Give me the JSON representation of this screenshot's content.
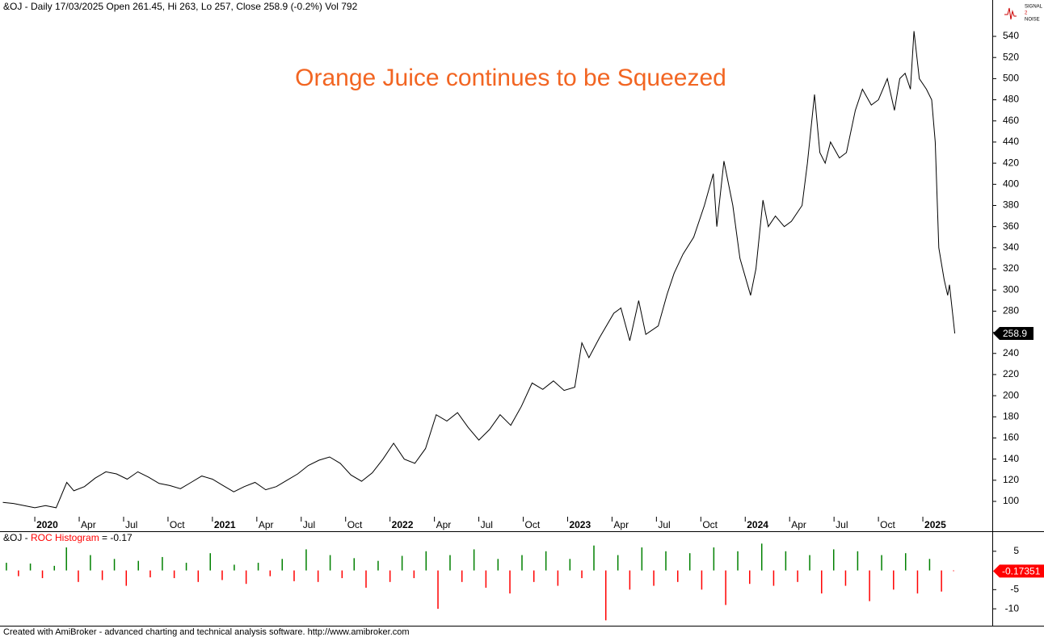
{
  "header": "&OJ - Daily 17/03/2025 Open 261.45, Hi 263, Lo 257, Close 258.9 (-0.2%) Vol 792",
  "footer": "Created with AmiBroker - advanced charting and technical analysis software. http://www.amibroker.com",
  "logo": [
    "SIGNAL",
    "2",
    "NOISE"
  ],
  "chart_data": [
    {
      "type": "line",
      "annotation": "Orange Juice continues to be Squeezed",
      "color": "#000000",
      "x": [
        2019.82,
        2019.88,
        2019.94,
        2020.0,
        2020.06,
        2020.12,
        2020.18,
        2020.22,
        2020.28,
        2020.34,
        2020.4,
        2020.46,
        2020.52,
        2020.58,
        2020.64,
        2020.7,
        2020.76,
        2020.82,
        2020.88,
        2020.94,
        2021.0,
        2021.06,
        2021.12,
        2021.18,
        2021.24,
        2021.3,
        2021.36,
        2021.42,
        2021.48,
        2021.54,
        2021.6,
        2021.66,
        2021.72,
        2021.78,
        2021.84,
        2021.9,
        2021.96,
        2022.02,
        2022.08,
        2022.14,
        2022.2,
        2022.26,
        2022.32,
        2022.38,
        2022.44,
        2022.5,
        2022.56,
        2022.62,
        2022.68,
        2022.74,
        2022.8,
        2022.86,
        2022.92,
        2022.98,
        2023.04,
        2023.08,
        2023.12,
        2023.18,
        2023.26,
        2023.3,
        2023.35,
        2023.4,
        2023.44,
        2023.51,
        2023.56,
        2023.6,
        2023.65,
        2023.71,
        2023.77,
        2023.82,
        2023.84,
        2023.88,
        2023.93,
        2023.97,
        2024.03,
        2024.06,
        2024.1,
        2024.13,
        2024.17,
        2024.22,
        2024.26,
        2024.32,
        2024.35,
        2024.39,
        2024.42,
        2024.45,
        2024.48,
        2024.53,
        2024.57,
        2024.62,
        2024.66,
        2024.71,
        2024.75,
        2024.8,
        2024.84,
        2024.87,
        2024.9,
        2024.93,
        2024.95,
        2024.98,
        2025.02,
        2025.05,
        2025.07,
        2025.09,
        2025.12,
        2025.14,
        2025.15,
        2025.18
      ],
      "values": [
        99,
        98,
        96,
        94,
        96,
        94,
        118,
        110,
        114,
        122,
        128,
        126,
        121,
        128,
        123,
        117,
        115,
        112,
        118,
        124,
        121,
        115,
        109,
        114,
        118,
        111,
        114,
        120,
        126,
        134,
        139,
        142,
        136,
        125,
        119,
        127,
        140,
        155,
        140,
        136,
        150,
        182,
        176,
        184,
        170,
        158,
        168,
        182,
        172,
        190,
        212,
        206,
        214,
        205,
        208,
        250,
        236,
        255,
        278,
        283,
        252,
        290,
        258,
        266,
        296,
        316,
        334,
        350,
        380,
        410,
        360,
        422,
        380,
        330,
        295,
        320,
        385,
        360,
        370,
        360,
        365,
        380,
        420,
        485,
        430,
        420,
        440,
        425,
        430,
        470,
        490,
        475,
        480,
        500,
        470,
        500,
        505,
        490,
        545,
        500,
        490,
        480,
        440,
        340,
        310,
        295,
        305,
        258.9
      ],
      "xlim": [
        2019.804,
        2025.391
      ],
      "xticks": [
        {
          "value": 2020,
          "label": "2020"
        },
        {
          "value": 2020.25,
          "label": "Apr"
        },
        {
          "value": 2020.5,
          "label": "Jul"
        },
        {
          "value": 2020.75,
          "label": "Oct"
        },
        {
          "value": 2021,
          "label": "2021"
        },
        {
          "value": 2021.25,
          "label": "Apr"
        },
        {
          "value": 2021.5,
          "label": "Jul"
        },
        {
          "value": 2021.75,
          "label": "Oct"
        },
        {
          "value": 2022,
          "label": "2022"
        },
        {
          "value": 2022.25,
          "label": "Apr"
        },
        {
          "value": 2022.5,
          "label": "Jul"
        },
        {
          "value": 2022.75,
          "label": "Oct"
        },
        {
          "value": 2023,
          "label": "2023"
        },
        {
          "value": 2023.25,
          "label": "Apr"
        },
        {
          "value": 2023.5,
          "label": "Jul"
        },
        {
          "value": 2023.75,
          "label": "Oct"
        },
        {
          "value": 2024,
          "label": "2024"
        },
        {
          "value": 2024.25,
          "label": "Apr"
        },
        {
          "value": 2024.5,
          "label": "Jul"
        },
        {
          "value": 2024.75,
          "label": "Oct"
        },
        {
          "value": 2025,
          "label": "2025"
        }
      ],
      "ylim": [
        85.5,
        574.4
      ],
      "yticks": [
        100,
        120,
        140,
        160,
        180,
        200,
        220,
        240,
        260,
        280,
        300,
        320,
        340,
        360,
        380,
        400,
        420,
        440,
        460,
        480,
        500,
        520,
        540
      ]
    },
    {
      "type": "histogram",
      "title": "&OJ - ",
      "indicator": "ROC Histogram",
      "value_text": " = -0.17",
      "up_color": "#008000",
      "down_color": "#ff0000",
      "x": [
        2019.84,
        2019.908,
        2019.975,
        2020.043,
        2020.11,
        2020.178,
        2020.245,
        2020.313,
        2020.38,
        2020.448,
        2020.515,
        2020.583,
        2020.65,
        2020.718,
        2020.785,
        2020.853,
        2020.92,
        2020.988,
        2021.055,
        2021.123,
        2021.19,
        2021.258,
        2021.325,
        2021.393,
        2021.46,
        2021.528,
        2021.595,
        2021.663,
        2021.73,
        2021.798,
        2021.865,
        2021.933,
        2022.0,
        2022.068,
        2022.135,
        2022.203,
        2022.27,
        2022.338,
        2022.405,
        2022.473,
        2022.54,
        2022.608,
        2022.675,
        2022.743,
        2022.81,
        2022.878,
        2022.945,
        2023.013,
        2023.08,
        2023.148,
        2023.215,
        2023.283,
        2023.35,
        2023.418,
        2023.485,
        2023.553,
        2023.62,
        2023.688,
        2023.755,
        2023.823,
        2023.89,
        2023.958,
        2024.025,
        2024.093,
        2024.16,
        2024.228,
        2024.295,
        2024.363,
        2024.43,
        2024.498,
        2024.565,
        2024.633,
        2024.7,
        2024.768,
        2024.835,
        2024.903,
        2024.97,
        2025.038,
        2025.105,
        2025.173
      ],
      "values": [
        2,
        -1.5,
        1.8,
        -2,
        1.2,
        6,
        -3,
        4,
        -2.5,
        3,
        -4,
        2.5,
        -1.8,
        3.5,
        -2,
        2,
        -3,
        4.5,
        -2.5,
        1.5,
        -3.5,
        2,
        -1.5,
        3,
        -2.8,
        5.5,
        -3,
        4,
        -2,
        3.2,
        -4.5,
        2.5,
        -3,
        3.8,
        -2,
        5,
        -10,
        4,
        -3,
        5.5,
        -4.5,
        3,
        -6,
        4,
        -3,
        5,
        -4,
        3,
        -2,
        6.5,
        -13,
        4,
        -5,
        6,
        -4,
        5,
        -3,
        4.5,
        -5,
        6,
        -9,
        5,
        -3.5,
        7,
        -4,
        5,
        -3,
        4,
        -6,
        5.5,
        -4,
        5,
        -8,
        4,
        -5,
        4.5,
        -6,
        3,
        -5.5,
        -0.17351
      ],
      "xlim": [
        2019.804,
        2025.391
      ],
      "ylim": [
        -14.4,
        9.8
      ],
      "yticks": [
        5,
        -5,
        -10
      ]
    }
  ]
}
